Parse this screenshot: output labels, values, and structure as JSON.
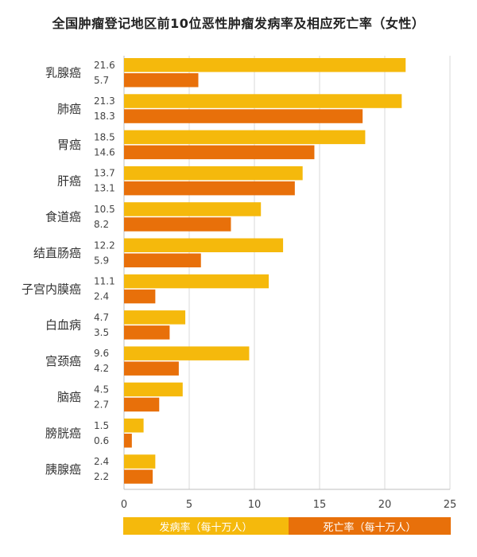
{
  "chart_data": {
    "type": "bar",
    "orientation": "horizontal",
    "title": "全国肿瘤登记地区前10位恶性肿瘤发病率及相应死亡率（女性）",
    "categories": [
      "乳腺癌",
      "肺癌",
      "胃癌",
      "肝癌",
      "食道癌",
      "结直肠癌",
      "子宫内膜癌",
      "白血病",
      "宫颈癌",
      "脑癌",
      "膀胱癌",
      "胰腺癌"
    ],
    "series": [
      {
        "name": "发病率（每十万人）",
        "color": "#F5B90C",
        "values": [
          21.6,
          21.3,
          18.5,
          13.7,
          10.5,
          12.2,
          11.1,
          4.7,
          9.6,
          4.5,
          1.5,
          2.4
        ]
      },
      {
        "name": "死亡率（每十万人）",
        "color": "#E8700A",
        "values": [
          5.7,
          18.3,
          14.6,
          13.1,
          8.2,
          5.9,
          2.4,
          3.5,
          4.2,
          2.7,
          0.6,
          2.2
        ]
      }
    ],
    "value_labels": [
      [
        "21.6",
        "21.3",
        "18.5",
        "13.7",
        "10.5",
        "12.2",
        "11.1",
        "4.7",
        "9.6",
        "4.5",
        "1.5",
        "2.4"
      ],
      [
        "5.7",
        "18.3",
        "14.6",
        "13.1",
        "8.2",
        "5.9",
        "2.4",
        "3.5",
        "4.2",
        "2.7",
        "0.6",
        "2.2"
      ]
    ],
    "xlim": [
      0,
      25
    ],
    "xticks": [
      "0",
      "5",
      "10",
      "15",
      "20",
      "25"
    ],
    "grid": true,
    "legend_position": "bottom"
  }
}
